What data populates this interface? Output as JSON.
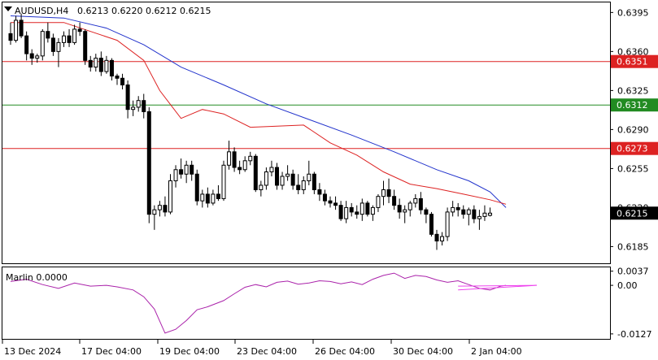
{
  "window": {
    "symbol_label": "AUDUSD,H4",
    "ohlc_label": "0.6213 0.6220 0.6212 0.6215"
  },
  "colors": {
    "background": "#ffffff",
    "candle": "#000000",
    "ma_fast": "#dd2222",
    "ma_slow": "#2233cc",
    "hline_resistance": "#dd2222",
    "hline_support": "#228b22",
    "price_tag": "#000000",
    "marlin_line": "#aa22aa",
    "marlin_triangle": "#ee44ee"
  },
  "chart_data": {
    "type": "candlestick",
    "price_axis": {
      "ticks": [
        "0.6395",
        "0.6360",
        "0.6325",
        "0.6290",
        "0.6255",
        "0.6220",
        "0.6185"
      ],
      "range": [
        0.617,
        0.6404
      ]
    },
    "horizontal_levels": [
      {
        "value": 0.6351,
        "label": "0.6351",
        "color": "#dd2222"
      },
      {
        "value": 0.6312,
        "label": "0.6312",
        "color": "#228b22"
      },
      {
        "value": 0.6273,
        "label": "0.6273",
        "color": "#dd2222"
      }
    ],
    "current_price": {
      "value": 0.6215,
      "label": "0.6215"
    },
    "time_axis": [
      "13 Dec 2024",
      "17 Dec 04:00",
      "19 Dec 04:00",
      "23 Dec 04:00",
      "26 Dec 04:00",
      "30 Dec 04:00",
      "2 Jan 04:00"
    ],
    "candles": [
      [
        0.6376,
        0.6386,
        0.6366,
        0.637
      ],
      [
        0.637,
        0.6392,
        0.6368,
        0.6388
      ],
      [
        0.6388,
        0.6394,
        0.6372,
        0.6374
      ],
      [
        0.6374,
        0.6378,
        0.6352,
        0.6358
      ],
      [
        0.6358,
        0.6362,
        0.6348,
        0.6354
      ],
      [
        0.6354,
        0.6358,
        0.635,
        0.6356
      ],
      [
        0.6356,
        0.638,
        0.6352,
        0.6378
      ],
      [
        0.6378,
        0.6386,
        0.6368,
        0.6372
      ],
      [
        0.6372,
        0.6376,
        0.6356,
        0.636
      ],
      [
        0.636,
        0.6372,
        0.6346,
        0.6368
      ],
      [
        0.6368,
        0.6378,
        0.6364,
        0.6374
      ],
      [
        0.6374,
        0.638,
        0.6364,
        0.6368
      ],
      [
        0.6368,
        0.6384,
        0.6366,
        0.638
      ],
      [
        0.638,
        0.6386,
        0.6374,
        0.6378
      ],
      [
        0.6378,
        0.638,
        0.6348,
        0.6352
      ],
      [
        0.6352,
        0.6356,
        0.6342,
        0.6346
      ],
      [
        0.6346,
        0.6358,
        0.6342,
        0.6354
      ],
      [
        0.6354,
        0.636,
        0.6338,
        0.6342
      ],
      [
        0.6342,
        0.6356,
        0.634,
        0.6352
      ],
      [
        0.6352,
        0.6354,
        0.6334,
        0.6338
      ],
      [
        0.6338,
        0.634,
        0.633,
        0.6336
      ],
      [
        0.6336,
        0.634,
        0.6326,
        0.633
      ],
      [
        0.633,
        0.6334,
        0.63,
        0.6308
      ],
      [
        0.6308,
        0.6316,
        0.6302,
        0.631
      ],
      [
        0.631,
        0.632,
        0.6306,
        0.6316
      ],
      [
        0.6316,
        0.6322,
        0.63,
        0.6306
      ],
      [
        0.6306,
        0.631,
        0.6206,
        0.6214
      ],
      [
        0.6214,
        0.6222,
        0.62,
        0.6218
      ],
      [
        0.6218,
        0.6226,
        0.6212,
        0.6222
      ],
      [
        0.6222,
        0.623,
        0.6212,
        0.6216
      ],
      [
        0.6216,
        0.625,
        0.6214,
        0.6244
      ],
      [
        0.6244,
        0.6258,
        0.6238,
        0.6254
      ],
      [
        0.6254,
        0.6264,
        0.6246,
        0.625
      ],
      [
        0.625,
        0.6262,
        0.6242,
        0.6258
      ],
      [
        0.6258,
        0.6262,
        0.6244,
        0.625
      ],
      [
        0.625,
        0.6254,
        0.6222,
        0.6226
      ],
      [
        0.6226,
        0.6236,
        0.622,
        0.6232
      ],
      [
        0.6232,
        0.6238,
        0.622,
        0.6224
      ],
      [
        0.6224,
        0.6236,
        0.6222,
        0.6232
      ],
      [
        0.6232,
        0.624,
        0.6226,
        0.6228
      ],
      [
        0.6228,
        0.6262,
        0.6226,
        0.6258
      ],
      [
        0.6258,
        0.628,
        0.6254,
        0.627
      ],
      [
        0.627,
        0.6274,
        0.6252,
        0.6256
      ],
      [
        0.6256,
        0.6262,
        0.625,
        0.6254
      ],
      [
        0.6254,
        0.6266,
        0.6252,
        0.6262
      ],
      [
        0.6262,
        0.627,
        0.6258,
        0.6266
      ],
      [
        0.6266,
        0.6268,
        0.6234,
        0.6236
      ],
      [
        0.6236,
        0.6244,
        0.623,
        0.624
      ],
      [
        0.624,
        0.6256,
        0.6236,
        0.6252
      ],
      [
        0.6252,
        0.6262,
        0.6248,
        0.6256
      ],
      [
        0.6256,
        0.626,
        0.6236,
        0.624
      ],
      [
        0.624,
        0.6252,
        0.6236,
        0.6248
      ],
      [
        0.6248,
        0.6258,
        0.6244,
        0.625
      ],
      [
        0.625,
        0.6254,
        0.6236,
        0.624
      ],
      [
        0.624,
        0.625,
        0.6232,
        0.6236
      ],
      [
        0.6236,
        0.6248,
        0.6232,
        0.6244
      ],
      [
        0.6244,
        0.6262,
        0.624,
        0.625
      ],
      [
        0.625,
        0.6252,
        0.6232,
        0.6236
      ],
      [
        0.6236,
        0.6242,
        0.6226,
        0.6232
      ],
      [
        0.6232,
        0.6236,
        0.6222,
        0.6226
      ],
      [
        0.6226,
        0.623,
        0.622,
        0.6224
      ],
      [
        0.6224,
        0.623,
        0.6218,
        0.6222
      ],
      [
        0.6222,
        0.6226,
        0.6208,
        0.621
      ],
      [
        0.621,
        0.6226,
        0.6206,
        0.622
      ],
      [
        0.622,
        0.6224,
        0.6212,
        0.6216
      ],
      [
        0.6216,
        0.6222,
        0.621,
        0.6214
      ],
      [
        0.6214,
        0.6228,
        0.6208,
        0.6224
      ],
      [
        0.6224,
        0.6226,
        0.6212,
        0.6214
      ],
      [
        0.6214,
        0.6222,
        0.6208,
        0.622
      ],
      [
        0.622,
        0.6232,
        0.6216,
        0.623
      ],
      [
        0.623,
        0.6244,
        0.6222,
        0.6236
      ],
      [
        0.6236,
        0.6246,
        0.6224,
        0.623
      ],
      [
        0.623,
        0.6236,
        0.6218,
        0.6222
      ],
      [
        0.6222,
        0.6228,
        0.621,
        0.6216
      ],
      [
        0.6216,
        0.6222,
        0.6206,
        0.6218
      ],
      [
        0.6218,
        0.6226,
        0.6212,
        0.6224
      ],
      [
        0.6224,
        0.6232,
        0.622,
        0.6228
      ],
      [
        0.6228,
        0.6234,
        0.6214,
        0.6218
      ],
      [
        0.6218,
        0.622,
        0.6206,
        0.6214
      ],
      [
        0.6214,
        0.6216,
        0.6194,
        0.6196
      ],
      [
        0.6196,
        0.62,
        0.6182,
        0.619
      ],
      [
        0.619,
        0.6198,
        0.6186,
        0.6194
      ],
      [
        0.6194,
        0.622,
        0.619,
        0.6216
      ],
      [
        0.6216,
        0.6226,
        0.6212,
        0.622
      ],
      [
        0.622,
        0.6224,
        0.6212,
        0.6218
      ],
      [
        0.6218,
        0.6222,
        0.621,
        0.6214
      ],
      [
        0.6214,
        0.622,
        0.6204,
        0.6218
      ],
      [
        0.6218,
        0.6222,
        0.6206,
        0.621
      ],
      [
        0.621,
        0.6218,
        0.62,
        0.6212
      ],
      [
        0.6212,
        0.6222,
        0.6208,
        0.6215
      ],
      [
        0.6213,
        0.622,
        0.6212,
        0.6215
      ]
    ],
    "ma_fast": [
      [
        0,
        0.6386
      ],
      [
        10,
        0.6386
      ],
      [
        20,
        0.637
      ],
      [
        25,
        0.6352
      ],
      [
        28,
        0.6325
      ],
      [
        32,
        0.63
      ],
      [
        36,
        0.6308
      ],
      [
        40,
        0.6304
      ],
      [
        45,
        0.6292
      ],
      [
        50,
        0.6293
      ],
      [
        55,
        0.6294
      ],
      [
        60,
        0.6278
      ],
      [
        65,
        0.6267
      ],
      [
        70,
        0.6252
      ],
      [
        75,
        0.6241
      ],
      [
        80,
        0.6237
      ],
      [
        85,
        0.6232
      ],
      [
        90,
        0.6227
      ],
      [
        93,
        0.6223
      ]
    ],
    "ma_slow": [
      [
        0,
        0.6392
      ],
      [
        10,
        0.639
      ],
      [
        18,
        0.6381
      ],
      [
        25,
        0.6366
      ],
      [
        32,
        0.6346
      ],
      [
        40,
        0.633
      ],
      [
        48,
        0.6313
      ],
      [
        56,
        0.6299
      ],
      [
        64,
        0.6285
      ],
      [
        72,
        0.627
      ],
      [
        80,
        0.6254
      ],
      [
        86,
        0.6244
      ],
      [
        90,
        0.6234
      ],
      [
        93,
        0.622
      ]
    ],
    "indicator": {
      "name": "Marlin",
      "value_label": "0.0000",
      "title": "Marlin 0.0000",
      "axis_ticks": [
        "0.0037",
        "0.00",
        "-0.0127"
      ],
      "range": [
        -0.014,
        0.0047
      ],
      "series": [
        [
          0,
          0.001
        ],
        [
          3,
          0.0016
        ],
        [
          6,
          0.0002
        ],
        [
          9,
          -0.0008
        ],
        [
          12,
          0.0006
        ],
        [
          15,
          -0.0002
        ],
        [
          18,
          0.0
        ],
        [
          20,
          -0.0004
        ],
        [
          23,
          -0.0012
        ],
        [
          25,
          -0.003
        ],
        [
          27,
          -0.0062
        ],
        [
          29,
          -0.0125
        ],
        [
          31,
          -0.0115
        ],
        [
          33,
          -0.0092
        ],
        [
          35,
          -0.0064
        ],
        [
          37,
          -0.0056
        ],
        [
          40,
          -0.004
        ],
        [
          42,
          -0.0022
        ],
        [
          44,
          -0.0005
        ],
        [
          46,
          0.0002
        ],
        [
          48,
          -0.0004
        ],
        [
          50,
          0.0008
        ],
        [
          52,
          0.0011
        ],
        [
          54,
          0.0003
        ],
        [
          56,
          0.0006
        ],
        [
          58,
          0.0012
        ],
        [
          60,
          0.001
        ],
        [
          62,
          0.0004
        ],
        [
          64,
          0.0009
        ],
        [
          66,
          0.0002
        ],
        [
          68,
          0.0016
        ],
        [
          70,
          0.0026
        ],
        [
          72,
          0.0032
        ],
        [
          74,
          0.0018
        ],
        [
          76,
          0.0026
        ],
        [
          78,
          0.0023
        ],
        [
          80,
          0.0014
        ],
        [
          82,
          0.0008
        ],
        [
          84,
          0.0012
        ],
        [
          86,
          0.0002
        ],
        [
          88,
          -0.0008
        ],
        [
          90,
          -0.0012
        ],
        [
          92,
          -0.0002
        ],
        [
          93,
          0.0
        ]
      ],
      "triangle": [
        [
          84,
          -0.0002
        ],
        [
          93,
          0.0024
        ],
        [
          93,
          -0.0008
        ]
      ]
    }
  }
}
